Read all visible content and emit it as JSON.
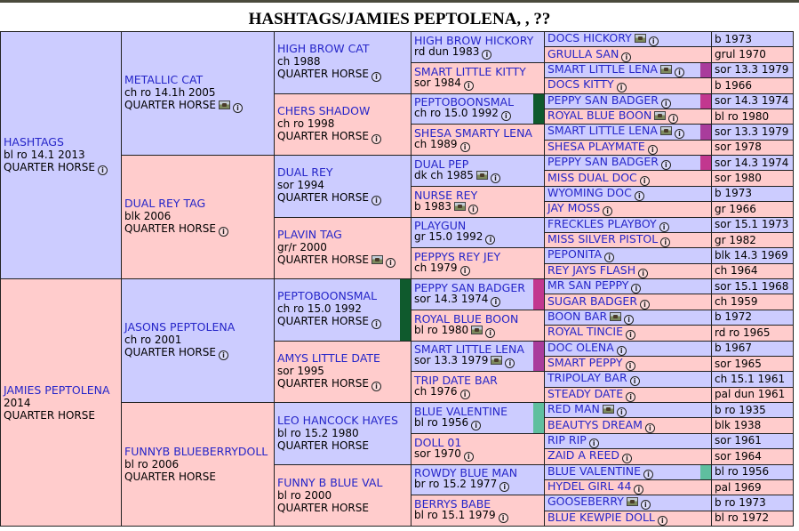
{
  "page": {
    "title": "HASHTAGS/JAMIES PEPTOLENA, , ??"
  },
  "colors": {
    "sire_cell": "#ccccff",
    "dam_cell": "#ffcccc",
    "name_link": "#2626c9"
  },
  "pedigree": {
    "gen1": [
      {
        "name": "HASHTAGS",
        "detail": "bl ro 14.1 2013",
        "breed": "QUARTER HORSE",
        "icons": [
          "info-icon"
        ]
      },
      {
        "name": "JAMIES PEPTOLENA",
        "detail": "2014",
        "breed": "QUARTER HORSE",
        "icons": []
      }
    ],
    "gen2": [
      {
        "name": "METALLIC CAT",
        "detail": "ch ro 14.1h 2005",
        "breed": "QUARTER HORSE",
        "icons": [
          "photo-icon",
          "info-icon"
        ]
      },
      {
        "name": "DUAL REY TAG",
        "detail": "blk 2006",
        "breed": "QUARTER HORSE",
        "icons": [
          "info-icon"
        ]
      },
      {
        "name": "JASONS PEPTOLENA",
        "detail": "ch ro 2001",
        "breed": "QUARTER HORSE",
        "icons": [
          "info-icon"
        ]
      },
      {
        "name": "FUNNYB BLUEBERRYDOLL",
        "detail": "bl ro 2006",
        "breed": "QUARTER HORSE",
        "icons": []
      }
    ],
    "gen3": [
      {
        "name": "HIGH BROW CAT",
        "detail": "ch 1988",
        "breed": "QUARTER HORSE",
        "icons": [
          "info-icon"
        ]
      },
      {
        "name": "CHERS SHADOW",
        "detail": "ch ro 1998",
        "breed": "QUARTER HORSE",
        "icons": [
          "info-icon"
        ]
      },
      {
        "name": "DUAL REY",
        "detail": "sor 1994",
        "breed": "QUARTER HORSE",
        "icons": [
          "info-icon"
        ]
      },
      {
        "name": "PLAVIN TAG",
        "detail": "gr/r 2000",
        "breed": "QUARTER HORSE",
        "icons": [
          "photo-icon",
          "info-icon"
        ]
      },
      {
        "name": "PEPTOBOONSMAL",
        "detail": "ch ro 15.0 1992",
        "breed": "QUARTER HORSE",
        "icons": [
          "info-icon"
        ],
        "marker": "#0f5a2d"
      },
      {
        "name": "AMYS LITTLE DATE",
        "detail": "sor 1995",
        "breed": "QUARTER HORSE",
        "icons": [
          "info-icon"
        ]
      },
      {
        "name": "LEO HANCOCK HAYES",
        "detail": "bl ro 15.2 1980",
        "breed": "QUARTER HORSE",
        "icons": []
      },
      {
        "name": "FUNNY B BLUE VAL",
        "detail": "bl ro 2000",
        "breed": "QUARTER HORSE",
        "icons": []
      }
    ],
    "gen4": [
      {
        "name": "HIGH BROW HICKORY",
        "detail": "rd dun 1983",
        "icons": [
          "info-icon"
        ]
      },
      {
        "name": "SMART LITTLE KITTY",
        "detail": "sor 1984",
        "icons": [
          "info-icon"
        ]
      },
      {
        "name": "PEPTOBOONSMAL",
        "detail": "ch ro 15.0 1992",
        "icons": [
          "info-icon"
        ],
        "marker": "#0f5a2d"
      },
      {
        "name": "SHESA SMARTY LENA",
        "detail": "ch 1989",
        "icons": [
          "info-icon"
        ]
      },
      {
        "name": "DUAL PEP",
        "detail": "dk ch 1985",
        "icons": [
          "photo-icon",
          "info-icon"
        ]
      },
      {
        "name": "NURSE REY",
        "detail": "b 1983",
        "icons": [
          "photo-icon",
          "info-icon"
        ]
      },
      {
        "name": "PLAYGUN",
        "detail": "gr 15.0 1992",
        "icons": [
          "info-icon"
        ]
      },
      {
        "name": "PEPPYS REY JEY",
        "detail": "ch 1979",
        "icons": [
          "info-icon"
        ]
      },
      {
        "name": "PEPPY SAN BADGER",
        "detail": "sor 14.3 1974",
        "icons": [
          "info-icon"
        ],
        "marker": "#c2378f"
      },
      {
        "name": "ROYAL BLUE BOON",
        "detail": "bl ro 1980",
        "icons": [
          "photo-icon",
          "info-icon"
        ]
      },
      {
        "name": "SMART LITTLE LENA",
        "detail": "sor 13.3 1979",
        "icons": [
          "photo-icon",
          "info-icon"
        ],
        "marker": "#a93c9c"
      },
      {
        "name": "TRIP DATE BAR",
        "detail": "ch 1976",
        "icons": [
          "info-icon"
        ]
      },
      {
        "name": "BLUE VALENTINE",
        "detail": "bl ro 1956",
        "icons": [
          "info-icon"
        ],
        "marker": "#5fbf9f"
      },
      {
        "name": "DOLL 01",
        "detail": "sor 1970",
        "icons": [
          "info-icon"
        ]
      },
      {
        "name": "ROWDY BLUE MAN",
        "detail": "br ro 15.2 1977",
        "icons": [
          "info-icon"
        ]
      },
      {
        "name": "BERRYS BABE",
        "detail": "bl ro 15.1 1979",
        "icons": [
          "info-icon"
        ]
      }
    ],
    "gen5": [
      {
        "name": "DOCS HICKORY",
        "detail": "b 1973",
        "icons": [
          "photo-icon",
          "info-icon"
        ]
      },
      {
        "name": "GRULLA SAN",
        "detail": "grul 1970",
        "icons": [
          "info-icon"
        ]
      },
      {
        "name": "SMART LITTLE LENA",
        "detail": "sor 13.3 1979",
        "icons": [
          "photo-icon",
          "info-icon"
        ],
        "marker": "#a93c9c"
      },
      {
        "name": "DOCS KITTY",
        "detail": "b 1966",
        "icons": [
          "info-icon"
        ]
      },
      {
        "name": "PEPPY SAN BADGER",
        "detail": "sor 14.3 1974",
        "icons": [
          "info-icon"
        ],
        "marker": "#c2378f"
      },
      {
        "name": "ROYAL BLUE BOON",
        "detail": "bl ro 1980",
        "icons": [
          "photo-icon",
          "info-icon"
        ]
      },
      {
        "name": "SMART LITTLE LENA",
        "detail": "sor 13.3 1979",
        "icons": [
          "photo-icon",
          "info-icon"
        ],
        "marker": "#a93c9c"
      },
      {
        "name": "SHESA PLAYMATE",
        "detail": "sor 1978",
        "icons": [
          "info-icon"
        ]
      },
      {
        "name": "PEPPY SAN BADGER",
        "detail": "sor 14.3 1974",
        "icons": [
          "info-icon"
        ],
        "marker": "#c2378f"
      },
      {
        "name": "MISS DUAL DOC",
        "detail": "sor 1980",
        "icons": [
          "info-icon"
        ]
      },
      {
        "name": "WYOMING DOC",
        "detail": "b 1973",
        "icons": [
          "info-icon"
        ]
      },
      {
        "name": "JAY MOSS",
        "detail": "gr 1966",
        "icons": [
          "info-icon"
        ]
      },
      {
        "name": "FRECKLES PLAYBOY",
        "detail": "sor 15.1 1973",
        "icons": [
          "info-icon"
        ]
      },
      {
        "name": "MISS SILVER PISTOL",
        "detail": "gr 1982",
        "icons": [
          "info-icon"
        ]
      },
      {
        "name": "PEPONITA",
        "detail": "blk 14.3 1969",
        "icons": [
          "info-icon"
        ]
      },
      {
        "name": "REY JAYS FLASH",
        "detail": "ch 1964",
        "icons": [
          "info-icon"
        ]
      },
      {
        "name": "MR SAN PEPPY",
        "detail": "sor 15.1 1968",
        "icons": [
          "info-icon"
        ]
      },
      {
        "name": "SUGAR BADGER",
        "detail": "ch 1959",
        "icons": [
          "info-icon"
        ]
      },
      {
        "name": "BOON BAR",
        "detail": "b 1972",
        "icons": [
          "photo-icon",
          "info-icon"
        ]
      },
      {
        "name": "ROYAL TINCIE",
        "detail": "rd ro 1965",
        "icons": [
          "info-icon"
        ]
      },
      {
        "name": "DOC OLENA",
        "detail": "b 1967",
        "icons": [
          "info-icon"
        ]
      },
      {
        "name": "SMART PEPPY",
        "detail": "sor 1965",
        "icons": [
          "info-icon"
        ]
      },
      {
        "name": "TRIPOLAY BAR",
        "detail": "ch 15.1 1961",
        "icons": [
          "info-icon"
        ]
      },
      {
        "name": "STEADY DATE",
        "detail": "pal dun 1961",
        "icons": [
          "info-icon"
        ]
      },
      {
        "name": "RED MAN",
        "detail": "b ro 1935",
        "icons": [
          "photo-icon",
          "info-icon"
        ]
      },
      {
        "name": "BEAUTYS DREAM",
        "detail": "blk 1938",
        "icons": [
          "info-icon"
        ]
      },
      {
        "name": "RIP RIP",
        "detail": "sor 1961",
        "icons": [
          "info-icon"
        ]
      },
      {
        "name": "ZAID A REED",
        "detail": "sor 1964",
        "icons": [
          "info-icon"
        ]
      },
      {
        "name": "BLUE VALENTINE",
        "detail": "bl ro 1956",
        "icons": [
          "info-icon"
        ],
        "marker": "#5fbf9f"
      },
      {
        "name": "HYDEL GIRL 44",
        "detail": "pal 1969",
        "icons": [
          "info-icon"
        ]
      },
      {
        "name": "GOOSEBERRY",
        "detail": "b ro 1973",
        "icons": [
          "photo-icon",
          "info-icon"
        ]
      },
      {
        "name": "BLUE KEWPIE DOLL",
        "detail": "bl ro 1972",
        "icons": [
          "info-icon"
        ]
      }
    ]
  }
}
